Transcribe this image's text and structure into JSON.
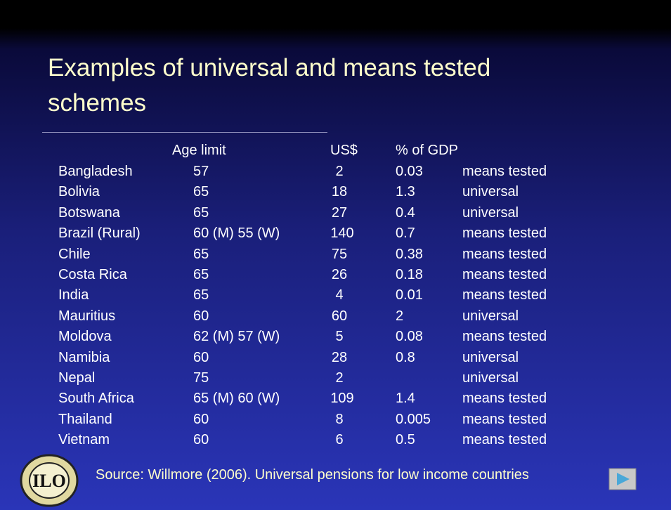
{
  "title": "Examples of universal and means tested schemes",
  "table": {
    "header": {
      "age": "Age limit",
      "usd": "US$",
      "gdp": "% of GDP"
    },
    "rows": [
      {
        "country": "Bangladesh",
        "age": "57",
        "usd": 2,
        "gdp": 0.03,
        "type": "means tested"
      },
      {
        "country": "Bolivia",
        "age": "65",
        "usd": 18,
        "gdp": 1.3,
        "type": "universal"
      },
      {
        "country": "Botswana",
        "age": "65",
        "usd": 27,
        "gdp": 0.4,
        "type": "universal"
      },
      {
        "country": "Brazil (Rural)",
        "age": "60 (M) 55 (W)",
        "usd": 140,
        "gdp": 0.7,
        "type": "means tested"
      },
      {
        "country": "Chile",
        "age": "65",
        "usd": 75,
        "gdp": 0.38,
        "type": "means tested"
      },
      {
        "country": "Costa Rica",
        "age": "65",
        "usd": 26,
        "gdp": 0.18,
        "type": "means tested"
      },
      {
        "country": "India",
        "age": "65",
        "usd": 4,
        "gdp": 0.01,
        "type": "means tested"
      },
      {
        "country": "Mauritius",
        "age": "60",
        "usd": 60,
        "gdp": 2,
        "type": "universal"
      },
      {
        "country": "Moldova",
        "age": "62 (M) 57 (W)",
        "usd": 5,
        "gdp": 0.08,
        "type": "means tested"
      },
      {
        "country": "Namibia",
        "age": "60",
        "usd": 28,
        "gdp": 0.8,
        "type": "universal"
      },
      {
        "country": "Nepal",
        "age": "75",
        "usd": 2,
        "type": "universal"
      },
      {
        "country": "South Africa",
        "age": "65 (M) 60 (W)",
        "usd": 109,
        "gdp": 1.4,
        "type": "means tested"
      },
      {
        "country": "Thailand",
        "age": "60",
        "usd": 8,
        "gdp": 0.005,
        "type": "means tested"
      },
      {
        "country": "Vietnam",
        "age": "60",
        "usd": 6,
        "gdp": 0.5,
        "type": "means tested"
      }
    ]
  },
  "source": "Source: Willmore (2006). Universal pensions for low income countries"
}
